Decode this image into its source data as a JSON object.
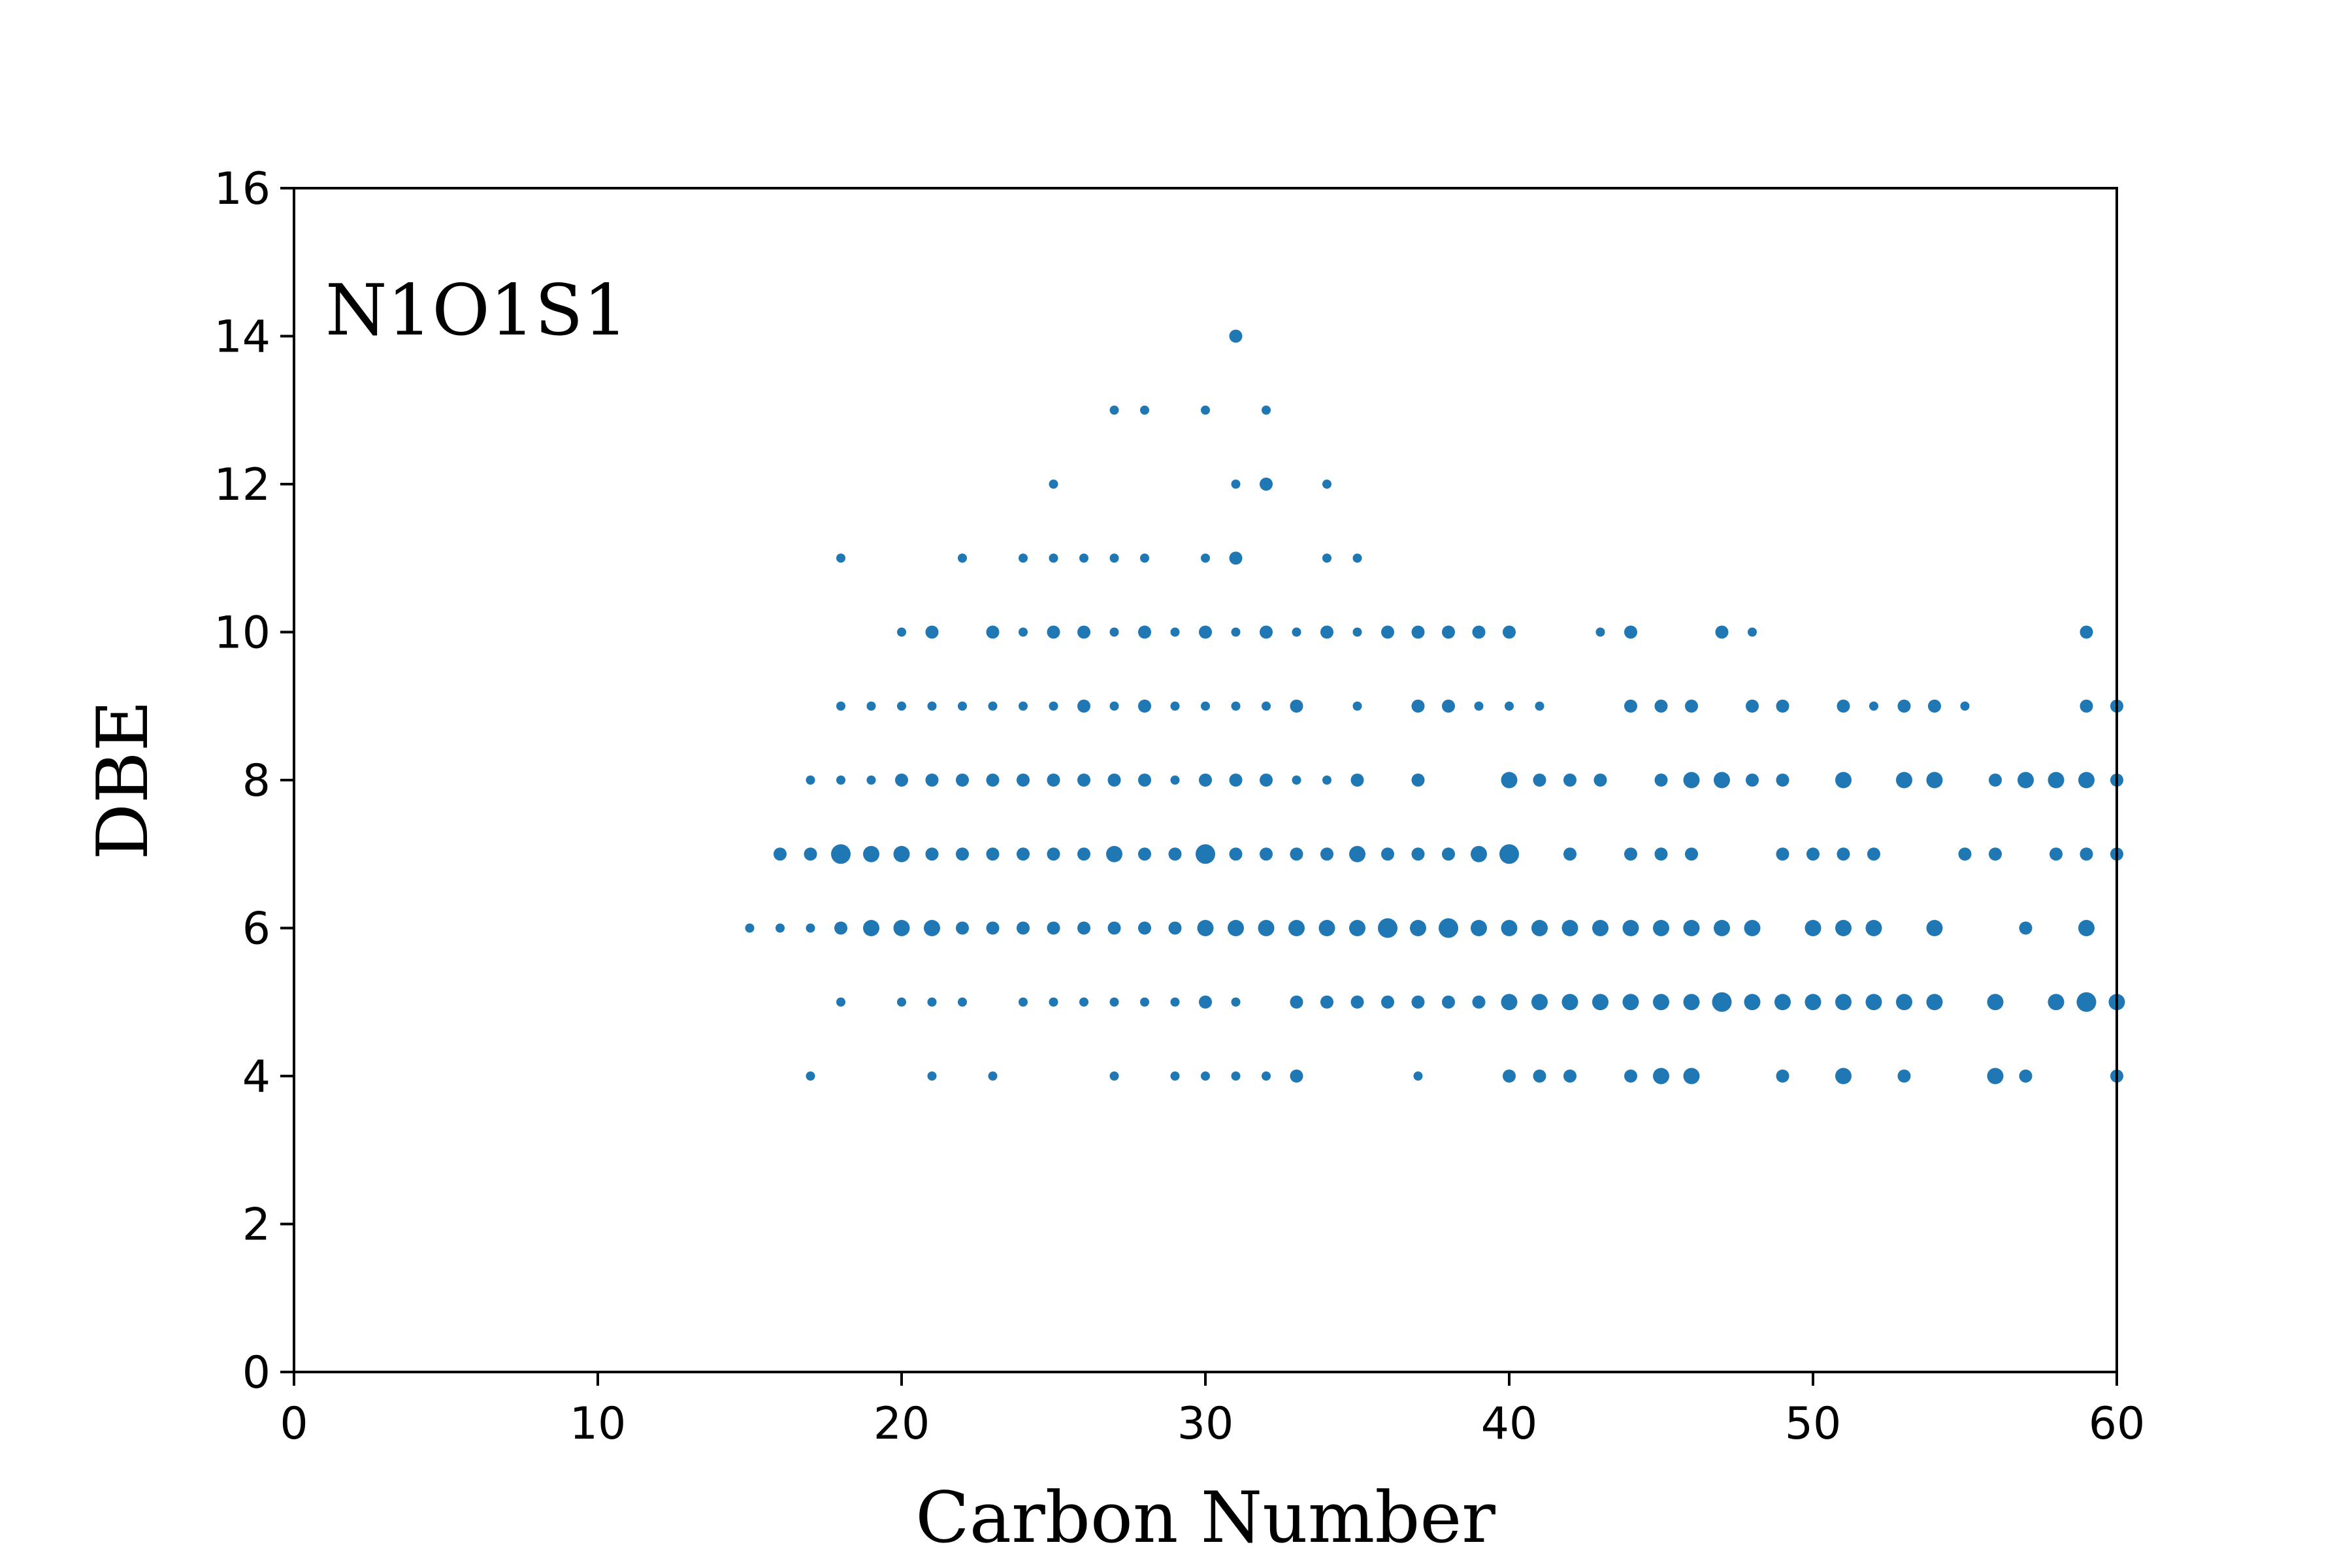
{
  "chart_data": {
    "type": "scatter",
    "xlabel": "Carbon Number",
    "ylabel": "DBE",
    "annotation": "N1O1S1",
    "xlim": [
      0,
      60
    ],
    "ylim": [
      0,
      16
    ],
    "xticks": [
      0,
      10,
      20,
      30,
      40,
      50,
      60
    ],
    "yticks": [
      0,
      2,
      4,
      6,
      8,
      10,
      12,
      14,
      16
    ],
    "grid": false,
    "marker_color": "#1f77b4",
    "note": "each point is [carbon_number, DBE, relative_abundance]; relative_abundance sets marker size (1 = smallest, 4 = largest)",
    "points": [
      [
        31,
        14,
        2
      ],
      [
        27,
        13,
        1
      ],
      [
        28,
        13,
        1
      ],
      [
        30,
        13,
        1
      ],
      [
        32,
        13,
        1
      ],
      [
        25,
        12,
        1
      ],
      [
        31,
        12,
        1
      ],
      [
        32,
        12,
        2
      ],
      [
        34,
        12,
        1
      ],
      [
        18,
        11,
        1
      ],
      [
        22,
        11,
        1
      ],
      [
        24,
        11,
        1
      ],
      [
        25,
        11,
        1
      ],
      [
        26,
        11,
        1
      ],
      [
        27,
        11,
        1
      ],
      [
        28,
        11,
        1
      ],
      [
        30,
        11,
        1
      ],
      [
        31,
        11,
        2
      ],
      [
        34,
        11,
        1
      ],
      [
        35,
        11,
        1
      ],
      [
        20,
        10,
        1
      ],
      [
        21,
        10,
        2
      ],
      [
        23,
        10,
        2
      ],
      [
        24,
        10,
        1
      ],
      [
        25,
        10,
        2
      ],
      [
        26,
        10,
        2
      ],
      [
        27,
        10,
        1
      ],
      [
        28,
        10,
        2
      ],
      [
        29,
        10,
        1
      ],
      [
        30,
        10,
        2
      ],
      [
        31,
        10,
        1
      ],
      [
        32,
        10,
        2
      ],
      [
        33,
        10,
        1
      ],
      [
        34,
        10,
        2
      ],
      [
        35,
        10,
        1
      ],
      [
        36,
        10,
        2
      ],
      [
        37,
        10,
        2
      ],
      [
        38,
        10,
        2
      ],
      [
        39,
        10,
        2
      ],
      [
        40,
        10,
        2
      ],
      [
        43,
        10,
        1
      ],
      [
        44,
        10,
        2
      ],
      [
        47,
        10,
        2
      ],
      [
        48,
        10,
        1
      ],
      [
        59,
        10,
        2
      ],
      [
        18,
        9,
        1
      ],
      [
        19,
        9,
        1
      ],
      [
        20,
        9,
        1
      ],
      [
        21,
        9,
        1
      ],
      [
        22,
        9,
        1
      ],
      [
        23,
        9,
        1
      ],
      [
        24,
        9,
        1
      ],
      [
        25,
        9,
        1
      ],
      [
        26,
        9,
        2
      ],
      [
        27,
        9,
        1
      ],
      [
        28,
        9,
        2
      ],
      [
        29,
        9,
        1
      ],
      [
        30,
        9,
        1
      ],
      [
        31,
        9,
        1
      ],
      [
        32,
        9,
        1
      ],
      [
        33,
        9,
        2
      ],
      [
        35,
        9,
        1
      ],
      [
        37,
        9,
        2
      ],
      [
        38,
        9,
        2
      ],
      [
        39,
        9,
        1
      ],
      [
        40,
        9,
        1
      ],
      [
        41,
        9,
        1
      ],
      [
        44,
        9,
        2
      ],
      [
        45,
        9,
        2
      ],
      [
        46,
        9,
        2
      ],
      [
        48,
        9,
        2
      ],
      [
        49,
        9,
        2
      ],
      [
        51,
        9,
        2
      ],
      [
        52,
        9,
        1
      ],
      [
        53,
        9,
        2
      ],
      [
        54,
        9,
        2
      ],
      [
        55,
        9,
        1
      ],
      [
        59,
        9,
        2
      ],
      [
        60,
        9,
        2
      ],
      [
        17,
        8,
        1
      ],
      [
        18,
        8,
        1
      ],
      [
        19,
        8,
        1
      ],
      [
        20,
        8,
        2
      ],
      [
        21,
        8,
        2
      ],
      [
        22,
        8,
        2
      ],
      [
        23,
        8,
        2
      ],
      [
        24,
        8,
        2
      ],
      [
        25,
        8,
        2
      ],
      [
        26,
        8,
        2
      ],
      [
        27,
        8,
        2
      ],
      [
        28,
        8,
        2
      ],
      [
        29,
        8,
        1
      ],
      [
        30,
        8,
        2
      ],
      [
        31,
        8,
        2
      ],
      [
        32,
        8,
        2
      ],
      [
        33,
        8,
        1
      ],
      [
        34,
        8,
        1
      ],
      [
        35,
        8,
        2
      ],
      [
        37,
        8,
        2
      ],
      [
        40,
        8,
        3
      ],
      [
        41,
        8,
        2
      ],
      [
        42,
        8,
        2
      ],
      [
        43,
        8,
        2
      ],
      [
        45,
        8,
        2
      ],
      [
        46,
        8,
        3
      ],
      [
        47,
        8,
        3
      ],
      [
        48,
        8,
        2
      ],
      [
        49,
        8,
        2
      ],
      [
        51,
        8,
        3
      ],
      [
        53,
        8,
        3
      ],
      [
        54,
        8,
        3
      ],
      [
        56,
        8,
        2
      ],
      [
        57,
        8,
        3
      ],
      [
        58,
        8,
        3
      ],
      [
        59,
        8,
        3
      ],
      [
        60,
        8,
        2
      ],
      [
        16,
        7,
        2
      ],
      [
        17,
        7,
        2
      ],
      [
        18,
        7,
        4
      ],
      [
        19,
        7,
        3
      ],
      [
        20,
        7,
        3
      ],
      [
        21,
        7,
        2
      ],
      [
        22,
        7,
        2
      ],
      [
        23,
        7,
        2
      ],
      [
        24,
        7,
        2
      ],
      [
        25,
        7,
        2
      ],
      [
        26,
        7,
        2
      ],
      [
        27,
        7,
        3
      ],
      [
        28,
        7,
        2
      ],
      [
        29,
        7,
        2
      ],
      [
        30,
        7,
        4
      ],
      [
        31,
        7,
        2
      ],
      [
        32,
        7,
        2
      ],
      [
        33,
        7,
        2
      ],
      [
        34,
        7,
        2
      ],
      [
        35,
        7,
        3
      ],
      [
        36,
        7,
        2
      ],
      [
        37,
        7,
        2
      ],
      [
        38,
        7,
        2
      ],
      [
        39,
        7,
        3
      ],
      [
        40,
        7,
        4
      ],
      [
        42,
        7,
        2
      ],
      [
        44,
        7,
        2
      ],
      [
        45,
        7,
        2
      ],
      [
        46,
        7,
        2
      ],
      [
        49,
        7,
        2
      ],
      [
        50,
        7,
        2
      ],
      [
        51,
        7,
        2
      ],
      [
        52,
        7,
        2
      ],
      [
        55,
        7,
        2
      ],
      [
        56,
        7,
        2
      ],
      [
        58,
        7,
        2
      ],
      [
        59,
        7,
        2
      ],
      [
        60,
        7,
        2
      ],
      [
        15,
        6,
        1
      ],
      [
        16,
        6,
        1
      ],
      [
        17,
        6,
        1
      ],
      [
        18,
        6,
        2
      ],
      [
        19,
        6,
        3
      ],
      [
        20,
        6,
        3
      ],
      [
        21,
        6,
        3
      ],
      [
        22,
        6,
        2
      ],
      [
        23,
        6,
        2
      ],
      [
        24,
        6,
        2
      ],
      [
        25,
        6,
        2
      ],
      [
        26,
        6,
        2
      ],
      [
        27,
        6,
        2
      ],
      [
        28,
        6,
        2
      ],
      [
        29,
        6,
        2
      ],
      [
        30,
        6,
        3
      ],
      [
        31,
        6,
        3
      ],
      [
        32,
        6,
        3
      ],
      [
        33,
        6,
        3
      ],
      [
        34,
        6,
        3
      ],
      [
        35,
        6,
        3
      ],
      [
        36,
        6,
        4
      ],
      [
        37,
        6,
        3
      ],
      [
        38,
        6,
        4
      ],
      [
        39,
        6,
        3
      ],
      [
        40,
        6,
        3
      ],
      [
        41,
        6,
        3
      ],
      [
        42,
        6,
        3
      ],
      [
        43,
        6,
        3
      ],
      [
        44,
        6,
        3
      ],
      [
        45,
        6,
        3
      ],
      [
        46,
        6,
        3
      ],
      [
        47,
        6,
        3
      ],
      [
        48,
        6,
        3
      ],
      [
        50,
        6,
        3
      ],
      [
        51,
        6,
        3
      ],
      [
        52,
        6,
        3
      ],
      [
        54,
        6,
        3
      ],
      [
        57,
        6,
        2
      ],
      [
        59,
        6,
        3
      ],
      [
        18,
        5,
        1
      ],
      [
        20,
        5,
        1
      ],
      [
        21,
        5,
        1
      ],
      [
        22,
        5,
        1
      ],
      [
        24,
        5,
        1
      ],
      [
        25,
        5,
        1
      ],
      [
        26,
        5,
        1
      ],
      [
        27,
        5,
        1
      ],
      [
        28,
        5,
        1
      ],
      [
        29,
        5,
        1
      ],
      [
        30,
        5,
        2
      ],
      [
        31,
        5,
        1
      ],
      [
        33,
        5,
        2
      ],
      [
        34,
        5,
        2
      ],
      [
        35,
        5,
        2
      ],
      [
        36,
        5,
        2
      ],
      [
        37,
        5,
        2
      ],
      [
        38,
        5,
        2
      ],
      [
        39,
        5,
        2
      ],
      [
        40,
        5,
        3
      ],
      [
        41,
        5,
        3
      ],
      [
        42,
        5,
        3
      ],
      [
        43,
        5,
        3
      ],
      [
        44,
        5,
        3
      ],
      [
        45,
        5,
        3
      ],
      [
        46,
        5,
        3
      ],
      [
        47,
        5,
        4
      ],
      [
        48,
        5,
        3
      ],
      [
        49,
        5,
        3
      ],
      [
        50,
        5,
        3
      ],
      [
        51,
        5,
        3
      ],
      [
        52,
        5,
        3
      ],
      [
        53,
        5,
        3
      ],
      [
        54,
        5,
        3
      ],
      [
        56,
        5,
        3
      ],
      [
        58,
        5,
        3
      ],
      [
        59,
        5,
        4
      ],
      [
        60,
        5,
        3
      ],
      [
        17,
        4,
        1
      ],
      [
        21,
        4,
        1
      ],
      [
        23,
        4,
        1
      ],
      [
        27,
        4,
        1
      ],
      [
        29,
        4,
        1
      ],
      [
        30,
        4,
        1
      ],
      [
        31,
        4,
        1
      ],
      [
        32,
        4,
        1
      ],
      [
        33,
        4,
        2
      ],
      [
        37,
        4,
        1
      ],
      [
        40,
        4,
        2
      ],
      [
        41,
        4,
        2
      ],
      [
        42,
        4,
        2
      ],
      [
        44,
        4,
        2
      ],
      [
        45,
        4,
        3
      ],
      [
        46,
        4,
        3
      ],
      [
        49,
        4,
        2
      ],
      [
        51,
        4,
        3
      ],
      [
        53,
        4,
        2
      ],
      [
        56,
        4,
        3
      ],
      [
        57,
        4,
        2
      ],
      [
        60,
        4,
        2
      ]
    ]
  }
}
